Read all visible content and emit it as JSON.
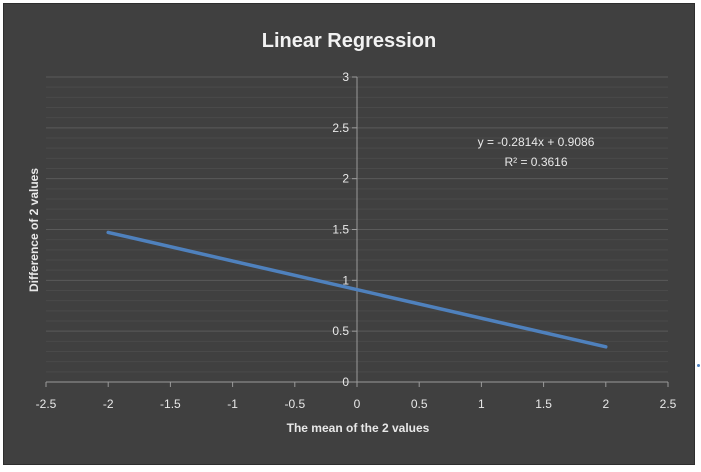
{
  "chart_data": {
    "type": "line",
    "title": "Linear Regression",
    "xlabel": "The mean of the 2 values",
    "ylabel": "Difference of 2 values",
    "xlim": [
      -2.5,
      2.5
    ],
    "ylim": [
      0,
      3
    ],
    "x_ticks": [
      -2.5,
      -2,
      -1.5,
      -1,
      -0.5,
      0,
      0.5,
      1,
      1.5,
      2,
      2.5
    ],
    "y_ticks": [
      0,
      0.5,
      1,
      1.5,
      2,
      2.5,
      3
    ],
    "x_tick_labels": [
      "-2.5",
      "-2",
      "-1.5",
      "-1",
      "-0.5",
      "0",
      "0.5",
      "1",
      "1.5",
      "2",
      "2.5"
    ],
    "y_tick_labels": [
      "0",
      "0.5",
      "1",
      "1.5",
      "2",
      "2.5",
      "3"
    ],
    "grid": true,
    "series": [
      {
        "x": [
          -2,
          2
        ],
        "y": [
          1.4714,
          0.3458
        ],
        "color": "#4f81bd"
      }
    ],
    "annotations": [
      {
        "text": "y = -0.2814x + 0.9086"
      },
      {
        "text": "R² = 0.3616"
      }
    ]
  }
}
